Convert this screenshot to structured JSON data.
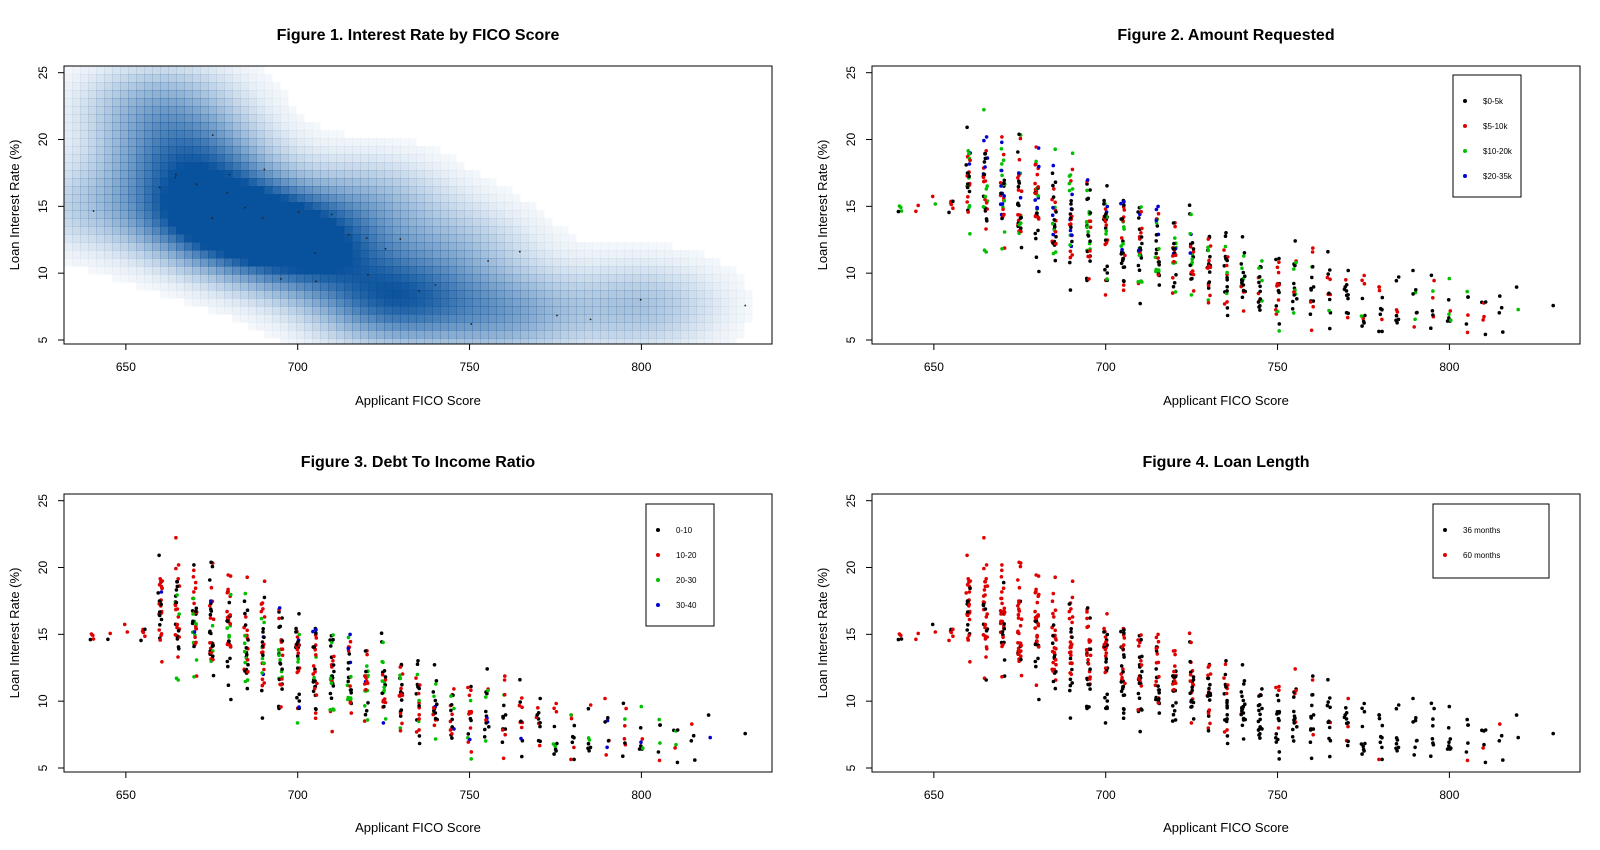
{
  "chart_data": [
    {
      "type": "heatmap",
      "title": "Figure 1. Interest Rate by FICO Score",
      "xlabel": "Applicant FICO Score",
      "ylabel": "Loan Interest Rate (%)",
      "xlim": [
        632,
        838
      ],
      "ylim": [
        4.7,
        25.5
      ],
      "xticks": [
        "650",
        "700",
        "750",
        "800"
      ],
      "yticks": [
        "5",
        "10",
        "15",
        "20",
        "25"
      ],
      "colormap": [
        "#ffffff",
        "#08519c"
      ],
      "density_centers": [
        {
          "x": 675,
          "y": 14.5,
          "weight": 1.0
        },
        {
          "x": 668,
          "y": 18.5,
          "weight": 0.7
        },
        {
          "x": 690,
          "y": 13.0,
          "weight": 0.8
        },
        {
          "x": 705,
          "y": 11.5,
          "weight": 0.7
        },
        {
          "x": 728,
          "y": 8.0,
          "weight": 0.85
        },
        {
          "x": 660,
          "y": 22.5,
          "weight": 0.45
        },
        {
          "x": 720,
          "y": 15.5,
          "weight": 0.35
        },
        {
          "x": 760,
          "y": 7.0,
          "weight": 0.5
        },
        {
          "x": 800,
          "y": 7.5,
          "weight": 0.35
        },
        {
          "x": 745,
          "y": 12.0,
          "weight": 0.3
        },
        {
          "x": 640,
          "y": 15.0,
          "weight": 0.25
        }
      ]
    },
    {
      "type": "scatter",
      "title": "Figure 2. Amount Requested",
      "xlabel": "Applicant FICO Score",
      "ylabel": "Loan Interest Rate (%)",
      "xlim": [
        632,
        838
      ],
      "ylim": [
        4.7,
        25.5
      ],
      "xticks": [
        "650",
        "700",
        "750",
        "800"
      ],
      "yticks": [
        "5",
        "10",
        "15",
        "20",
        "25"
      ],
      "legend_position": "top-right",
      "series": [
        {
          "name": "$0-5k",
          "color": "#000000"
        },
        {
          "name": "$5-10k",
          "color": "#df0000"
        },
        {
          "name": "$10-20k",
          "color": "#00c000"
        },
        {
          "name": "$20-35k",
          "color": "#0000d0"
        }
      ]
    },
    {
      "type": "scatter",
      "title": "Figure 3. Debt To Income Ratio",
      "xlabel": "Applicant FICO Score",
      "ylabel": "Loan Interest Rate (%)",
      "xlim": [
        632,
        838
      ],
      "ylim": [
        4.7,
        25.5
      ],
      "xticks": [
        "650",
        "700",
        "750",
        "800"
      ],
      "yticks": [
        "5",
        "10",
        "15",
        "20",
        "25"
      ],
      "legend_position": "top-right",
      "series": [
        {
          "name": "0-10",
          "color": "#000000"
        },
        {
          "name": "10-20",
          "color": "#df0000"
        },
        {
          "name": "20-30",
          "color": "#00c000"
        },
        {
          "name": "30-40",
          "color": "#0000d0"
        }
      ]
    },
    {
      "type": "scatter",
      "title": "Figure 4. Loan Length",
      "xlabel": "Applicant FICO Score",
      "ylabel": "Loan Interest Rate (%)",
      "xlim": [
        632,
        838
      ],
      "ylim": [
        4.7,
        25.5
      ],
      "xticks": [
        "650",
        "700",
        "750",
        "800"
      ],
      "yticks": [
        "5",
        "10",
        "15",
        "20",
        "25"
      ],
      "legend_position": "top-right",
      "series": [
        {
          "name": "36 months",
          "color": "#000000"
        },
        {
          "name": "60 months",
          "color": "#df0000"
        }
      ]
    }
  ],
  "scatter_points": {
    "fico_bins": [
      640,
      645,
      650,
      655,
      660,
      665,
      670,
      675,
      680,
      685,
      690,
      695,
      700,
      705,
      710,
      715,
      720,
      725,
      730,
      735,
      740,
      745,
      750,
      755,
      760,
      765,
      770,
      775,
      780,
      785,
      790,
      795,
      800,
      805,
      810,
      815,
      820,
      830
    ],
    "rate_center": [
      14.5,
      15.0,
      15.0,
      15.5,
      17.0,
      16.5,
      16.0,
      15.5,
      15.0,
      14.5,
      14.0,
      13.5,
      13.0,
      12.5,
      12.0,
      11.5,
      11.0,
      10.8,
      10.5,
      10.0,
      9.8,
      9.5,
      9.0,
      8.8,
      8.5,
      8.3,
      8.0,
      8.0,
      7.8,
      7.8,
      7.6,
      7.6,
      7.5,
      7.5,
      7.4,
      7.4,
      7.3,
      7.6
    ],
    "rate_spread": [
      1.5,
      1.0,
      1.0,
      2.0,
      4.0,
      4.0,
      4.0,
      4.0,
      4.0,
      3.8,
      3.8,
      3.6,
      3.6,
      3.4,
      3.3,
      3.2,
      3.2,
      3.2,
      3.0,
      3.0,
      3.0,
      2.8,
      2.8,
      2.6,
      2.6,
      2.5,
      2.5,
      2.4,
      2.3,
      2.3,
      2.2,
      2.2,
      2.0,
      2.0,
      2.0,
      1.8,
      1.5,
      0.5
    ],
    "counts": [
      4,
      2,
      2,
      6,
      30,
      34,
      36,
      36,
      36,
      34,
      34,
      34,
      34,
      32,
      30,
      28,
      26,
      26,
      24,
      22,
      20,
      18,
      18,
      16,
      14,
      12,
      12,
      10,
      10,
      8,
      8,
      8,
      8,
      6,
      6,
      4,
      2,
      1
    ]
  }
}
